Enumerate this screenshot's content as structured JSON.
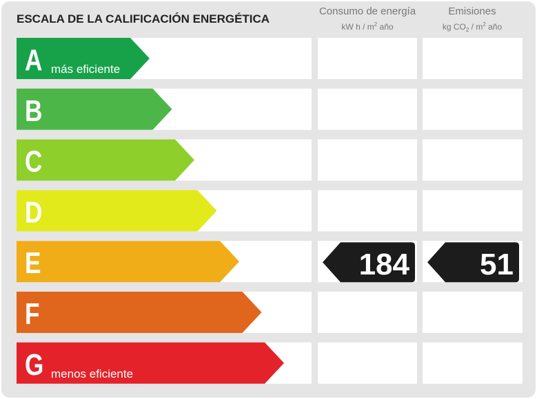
{
  "header": {
    "title": "ESCALA DE LA CALIFICACIÓN ENERGÉTICA"
  },
  "columns": [
    {
      "title": "Consumo de energía",
      "unit": [
        "kW h / m",
        "2",
        " año"
      ]
    },
    {
      "title": "Emisiones",
      "unit": [
        "kg CO",
        "2",
        " / m",
        "2",
        " año"
      ]
    }
  ],
  "rows": [
    {
      "letter": "A",
      "note": "más eficiente",
      "color": "#17a24a"
    },
    {
      "letter": "B",
      "color": "#4cb748"
    },
    {
      "letter": "C",
      "color": "#8fcf2b"
    },
    {
      "letter": "D",
      "color": "#e2ea1c"
    },
    {
      "letter": "E",
      "color": "#f0ad17",
      "energy": 184,
      "emissions": 51
    },
    {
      "letter": "F",
      "color": "#e0661d"
    },
    {
      "letter": "G",
      "note": "menos eficiente",
      "color": "#e3222a"
    }
  ]
}
